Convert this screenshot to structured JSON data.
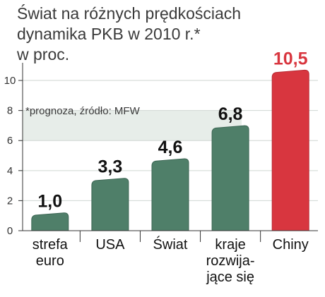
{
  "title_lines": [
    "Świat  na różnych prędkościach",
    "dynamika PKB w 2010 r.*",
    "w proc."
  ],
  "note": "*prognoza, źródło: MFW",
  "colors": {
    "green_bar": "#4f7f69",
    "green_bar_dark": "#3c6654",
    "red_bar": "#d8363f",
    "red_bar_dark": "#b82a33",
    "grid_band": "#e7ede9",
    "axis": "#333333"
  },
  "chart_data": {
    "type": "bar",
    "title": "Świat  na różnych prędkościach dynamika PKB w 2010 r.* w proc.",
    "categories": [
      "strefa euro",
      "USA",
      "Świat",
      "kraje rozwijające się",
      "Chiny"
    ],
    "category_label_lines": [
      [
        "strefa",
        "euro"
      ],
      [
        "USA"
      ],
      [
        "Świat"
      ],
      [
        "kraje",
        "rozwija-",
        "jące się"
      ],
      [
        "Chiny"
      ]
    ],
    "values": [
      1.0,
      3.3,
      4.6,
      6.8,
      10.5
    ],
    "value_labels": [
      "1,0",
      "3,3",
      "4,6",
      "6,8",
      "10,5"
    ],
    "highlight_index": 4,
    "yticks": [
      0,
      2,
      4,
      6,
      8,
      10
    ],
    "ylim": [
      0,
      10.8
    ],
    "grid": true,
    "xlabel": "",
    "ylabel": ""
  }
}
